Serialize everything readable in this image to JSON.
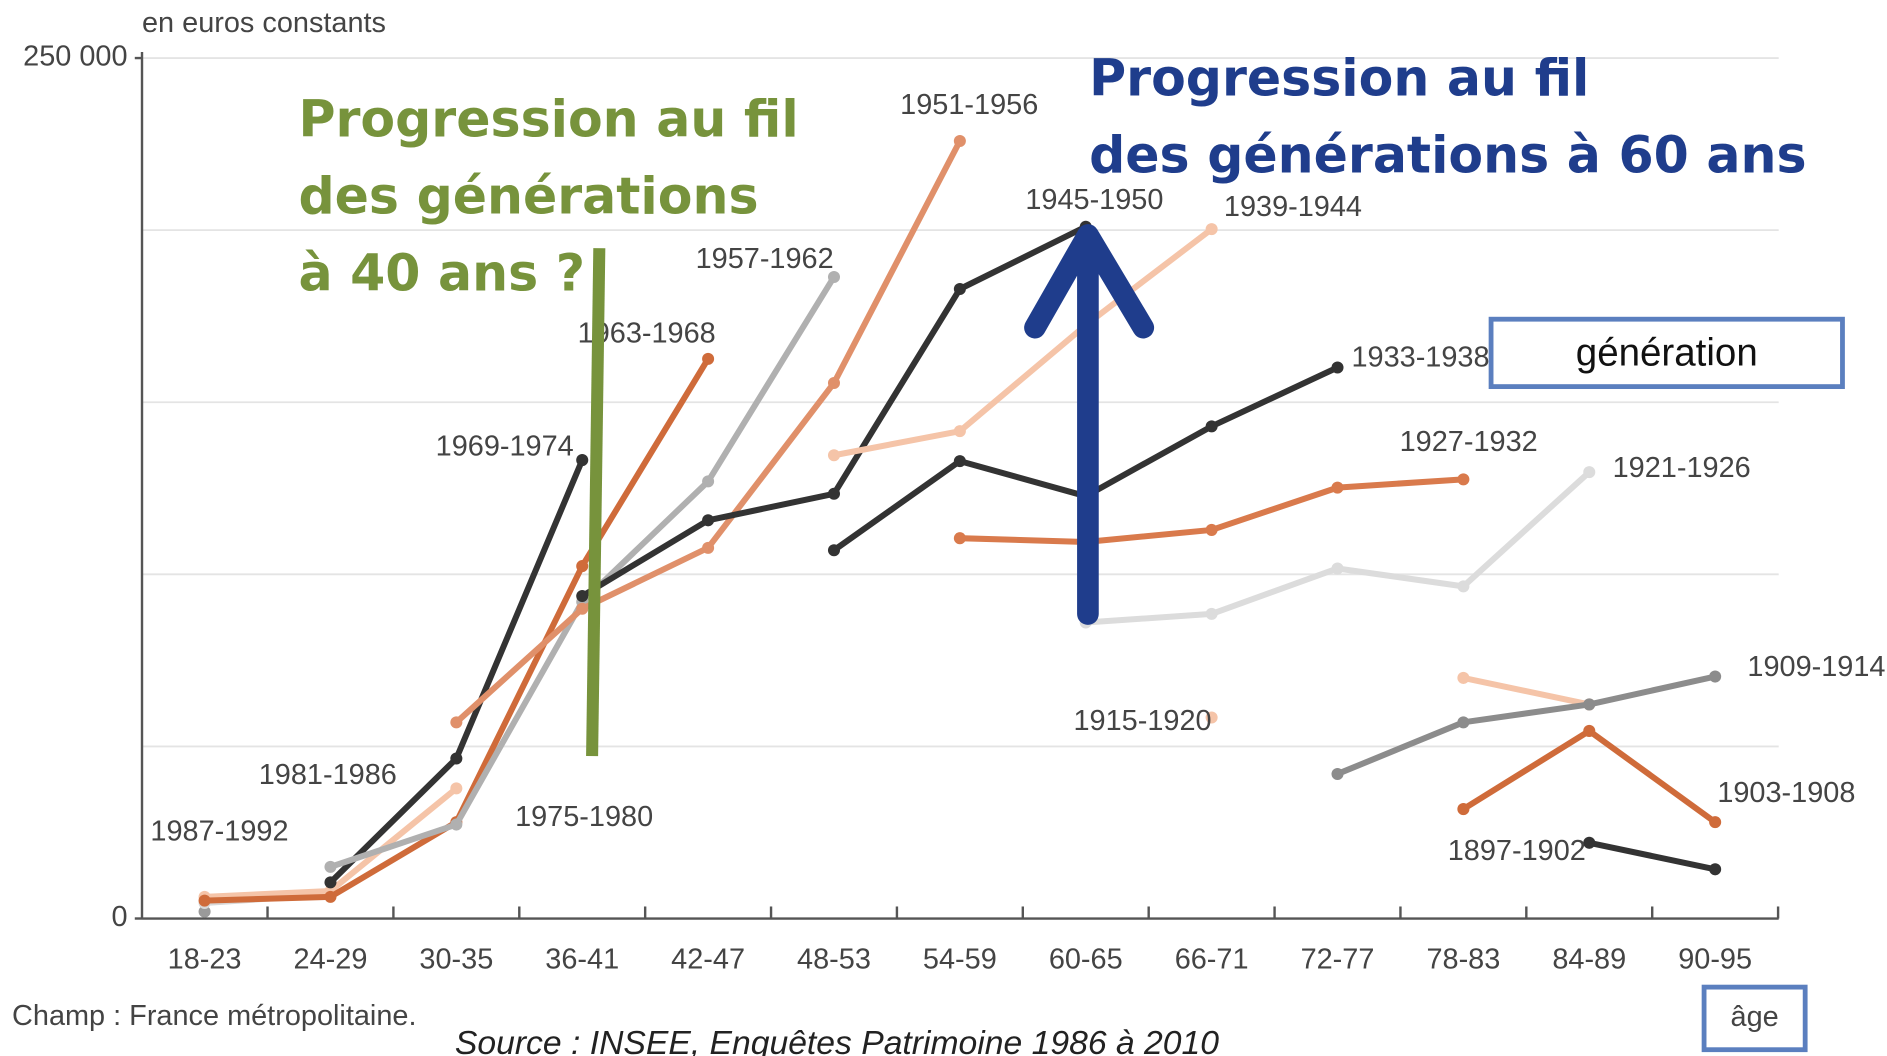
{
  "chart_data": {
    "type": "line",
    "ylabel": "en euros constants",
    "xlabel": "âge",
    "categories": [
      "18-23",
      "24-29",
      "30-35",
      "36-41",
      "42-47",
      "48-53",
      "54-59",
      "60-65",
      "66-71",
      "72-77",
      "78-83",
      "84-89",
      "90-95"
    ],
    "ylim": [
      0,
      250000
    ],
    "yticks": [
      0,
      {
        "value": 250000,
        "label": "250 000"
      }
    ],
    "ygrid": [
      50000,
      100000,
      150000,
      200000,
      250000
    ],
    "grid": true,
    "series": [
      {
        "name": "1987-1992",
        "color": "#9a9a9a",
        "values": [
          2000,
          null,
          null,
          null,
          null,
          null,
          null,
          null,
          null,
          null,
          null,
          null,
          null
        ]
      },
      {
        "name": "1981-1986",
        "color": "#d8d8d8",
        "values": [
          4500,
          7000,
          null,
          null,
          null,
          null,
          null,
          null,
          null,
          null,
          null,
          null,
          null
        ]
      },
      {
        "name": "1975-1980",
        "color": "#f5c4a8",
        "values": [
          6300,
          8000,
          37800,
          null,
          null,
          null,
          null,
          null,
          null,
          null,
          null,
          null,
          null
        ]
      },
      {
        "name": "1969-1974",
        "color": "#333333",
        "values": [
          null,
          10500,
          46500,
          133200,
          null,
          null,
          null,
          null,
          null,
          null,
          null,
          null,
          null
        ]
      },
      {
        "name": "1963-1968",
        "color": "#cf6b3a",
        "values": [
          5200,
          6300,
          28000,
          102400,
          162600,
          null,
          null,
          null,
          null,
          null,
          null,
          null,
          null
        ]
      },
      {
        "name": "1957-1962",
        "color": "#b0b0b0",
        "values": [
          null,
          15000,
          27300,
          92000,
          127000,
          186400,
          null,
          null,
          null,
          null,
          null,
          null,
          null
        ]
      },
      {
        "name": "1951-1956",
        "color": "#e0906a",
        "values": [
          null,
          null,
          57000,
          90000,
          107700,
          155600,
          225900,
          null,
          null,
          null,
          null,
          null,
          null
        ]
      },
      {
        "name": "1945-1950",
        "color": "#333333",
        "values": [
          null,
          null,
          null,
          93700,
          115700,
          123400,
          182900,
          201000,
          null,
          null,
          null,
          null,
          null
        ]
      },
      {
        "name": "1939-1944",
        "color": "#f5c4a8",
        "values": [
          null,
          null,
          null,
          null,
          null,
          134600,
          141600,
          172400,
          200300,
          null,
          null,
          null,
          null
        ]
      },
      {
        "name": "1933-1938",
        "color": "#333333",
        "values": [
          null,
          null,
          null,
          null,
          null,
          107000,
          132900,
          122700,
          143000,
          160100,
          null,
          null,
          null
        ]
      },
      {
        "name": "1927-1932",
        "color": "#d97a4c",
        "values": [
          null,
          null,
          null,
          null,
          null,
          null,
          110500,
          109400,
          112900,
          125200,
          127600,
          null,
          null
        ]
      },
      {
        "name": "1921-1926",
        "color": "#dcdcdc",
        "values": [
          null,
          null,
          null,
          null,
          null,
          null,
          null,
          86000,
          88500,
          101700,
          96500,
          129700,
          null
        ]
      },
      {
        "name": "1915-1920",
        "color": "#f5c4a8",
        "values": [
          null,
          null,
          null,
          null,
          null,
          null,
          null,
          null,
          58400,
          null,
          69900,
          62200,
          null
        ]
      },
      {
        "name": "1909-1914",
        "color": "#8c8c8c",
        "values": [
          null,
          null,
          null,
          null,
          null,
          null,
          null,
          null,
          null,
          42000,
          57000,
          62200,
          70300
        ]
      },
      {
        "name": "1903-1908",
        "color": "#cf6b3a",
        "values": [
          null,
          null,
          null,
          null,
          null,
          null,
          null,
          null,
          null,
          null,
          31800,
          54500,
          28000
        ]
      },
      {
        "name": "1897-1902",
        "color": "#333333",
        "values": [
          null,
          null,
          null,
          null,
          null,
          null,
          null,
          null,
          null,
          null,
          null,
          22000,
          14300
        ]
      }
    ],
    "annotations": {
      "green": [
        "Progression au fil",
        "des générations",
        "à 40 ans ?"
      ],
      "blue": [
        "Progression au fil",
        "des générations à 60 ans"
      ],
      "legend_box": "génération"
    },
    "note": "Champ : France métropolitaine.",
    "source": "Source : INSEE, Enquêtes Patrimoine 1986 à 2010"
  }
}
